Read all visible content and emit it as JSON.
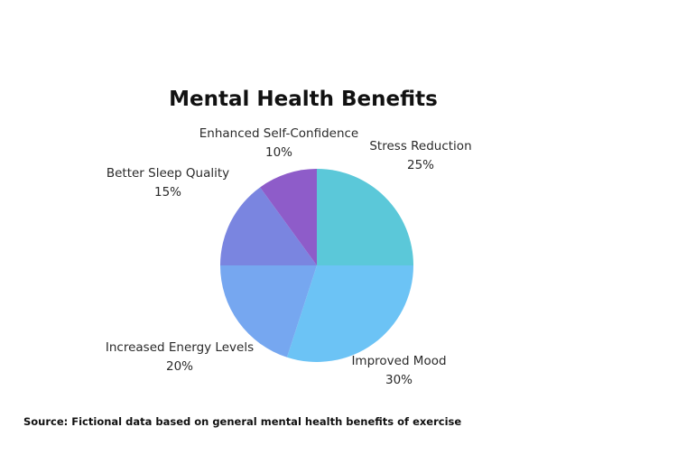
{
  "chart_data": {
    "type": "pie",
    "title": "Mental Health Benefits",
    "slices": [
      {
        "label": "Stress Reduction",
        "value": 25,
        "display": "25%",
        "color": "#5bc8d9"
      },
      {
        "label": "Improved Mood",
        "value": 30,
        "display": "30%",
        "color": "#6cc3f5"
      },
      {
        "label": "Increased Energy Levels",
        "value": 20,
        "display": "20%",
        "color": "#76a7f0"
      },
      {
        "label": "Better Sleep Quality",
        "value": 15,
        "display": "15%",
        "color": "#7a85e0"
      },
      {
        "label": "Enhanced Self-Confidence",
        "value": 10,
        "display": "10%",
        "color": "#8e5cc9"
      }
    ],
    "start_angle": "12 o'clock, clockwise",
    "legend": "none"
  },
  "footer": {
    "source": "Source: Fictional data based on general mental health benefits of exercise"
  }
}
